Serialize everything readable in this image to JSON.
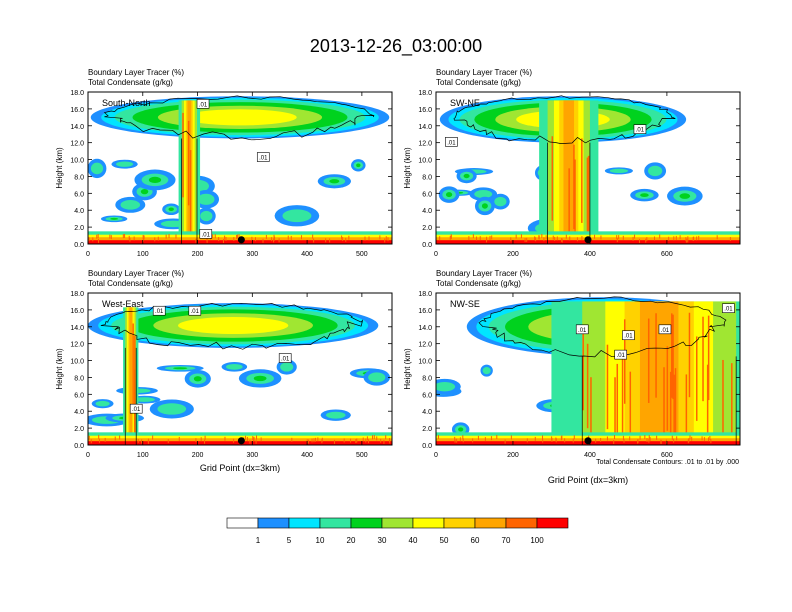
{
  "figure": {
    "title": "2013-12-26_03:00:00",
    "contour_note": "Total Condensate Contours: .01 to .01 by .000"
  },
  "colors": {
    "levels": [
      "#ffffff",
      "#1e90ff",
      "#00e5ff",
      "#33e6a0",
      "#00d21e",
      "#a0e632",
      "#ffff00",
      "#ffd200",
      "#ffa500",
      "#ff6400",
      "#ff0000"
    ],
    "contour": "#000000"
  },
  "chart_data": [
    {
      "type": "heatmap",
      "panel_label": "South-North",
      "title": "Boundary Layer Tracer   (%)",
      "subtitle": "Total Condensate   (g/kg)",
      "ylabel": "Height (km)",
      "xlabel": "",
      "xlim": [
        0,
        555
      ],
      "ylim": [
        0,
        18
      ],
      "xticks": [
        0,
        100,
        200,
        300,
        400,
        500
      ],
      "yticks": [
        "0.0",
        "2.0",
        "4.0",
        "6.0",
        "8.0",
        "10.0",
        "12.0",
        "14.0",
        "16.0",
        "18.0"
      ],
      "center_point_x": 280,
      "anvil_x": [
        5,
        550
      ],
      "anvil_y": [
        12.5,
        17.5
      ],
      "core_x": 185,
      "core_halfwidth": 14,
      "contour_labels": [
        {
          "text": ".01",
          "x": 210,
          "y": 16.6
        },
        {
          "text": ".01",
          "x": 320,
          "y": 10.3
        },
        {
          "text": ".01",
          "x": 215,
          "y": 1.2
        }
      ]
    },
    {
      "type": "heatmap",
      "panel_label": "SW-NE",
      "title": "Boundary Layer Tracer   (%)",
      "subtitle": "Total Condensate   (g/kg)",
      "ylabel": "Height (km)",
      "xlabel": "",
      "xlim": [
        0,
        790
      ],
      "ylim": [
        0,
        18
      ],
      "xticks": [
        0,
        200,
        400,
        600
      ],
      "yticks": [
        "0.0",
        "2.0",
        "4.0",
        "6.0",
        "8.0",
        "10.0",
        "12.0",
        "14.0",
        "16.0",
        "18.0"
      ],
      "center_point_x": 395,
      "anvil_x": [
        10,
        650
      ],
      "anvil_y": [
        12.0,
        17.5
      ],
      "core_x": 345,
      "core_halfwidth": 55,
      "contour_labels": [
        {
          "text": ".01",
          "x": 530,
          "y": 13.6
        },
        {
          "text": ".01",
          "x": 40,
          "y": 12.1
        }
      ]
    },
    {
      "type": "heatmap",
      "panel_label": "West-East",
      "title": "Boundary Layer Tracer   (%)",
      "subtitle": "Total Condensate   (g/kg)",
      "ylabel": "Height (km)",
      "xlabel": "Grid Point (dx=3km)",
      "xlim": [
        0,
        555
      ],
      "ylim": [
        0,
        18
      ],
      "xticks": [
        0,
        100,
        200,
        300,
        400,
        500
      ],
      "yticks": [
        "0.0",
        "2.0",
        "4.0",
        "6.0",
        "8.0",
        "10.0",
        "12.0",
        "14.0",
        "16.0",
        "18.0"
      ],
      "center_point_x": 280,
      "anvil_x": [
        0,
        530
      ],
      "anvil_y": [
        11.5,
        16.8
      ],
      "core_x": 78,
      "core_halfwidth": 10,
      "contour_labels": [
        {
          "text": ".01",
          "x": 130,
          "y": 15.9
        },
        {
          "text": ".01",
          "x": 195,
          "y": 15.9
        },
        {
          "text": ".01",
          "x": 360,
          "y": 10.3
        },
        {
          "text": ".01",
          "x": 88,
          "y": 4.3
        }
      ]
    },
    {
      "type": "heatmap",
      "panel_label": "NW-SE",
      "title": "Boundary Layer Tracer   (%)",
      "subtitle": "Total Condensate   (g/kg)",
      "ylabel": "Height (km)",
      "xlabel": "Grid Point (dx=3km)",
      "xlim": [
        0,
        790
      ],
      "ylim": [
        0,
        18
      ],
      "xticks": [
        0,
        200,
        400,
        600
      ],
      "yticks": [
        "0.0",
        "2.0",
        "4.0",
        "6.0",
        "8.0",
        "10.0",
        "12.0",
        "14.0",
        "16.0",
        "18.0"
      ],
      "center_point_x": 395,
      "anvil_x": [
        80,
        790
      ],
      "anvil_y": [
        10.5,
        17.5
      ],
      "core_x": 580,
      "core_halfwidth": 200,
      "contour_labels": [
        {
          "text": ".01",
          "x": 760,
          "y": 16.2
        },
        {
          "text": ".01",
          "x": 595,
          "y": 13.7
        },
        {
          "text": ".01",
          "x": 380,
          "y": 13.7
        },
        {
          "text": ".01",
          "x": 500,
          "y": 13.0
        },
        {
          "text": ".01",
          "x": 480,
          "y": 10.7
        }
      ]
    }
  ],
  "legend": {
    "labels": [
      "1",
      "5",
      "10",
      "20",
      "30",
      "40",
      "50",
      "60",
      "70",
      "100"
    ]
  }
}
